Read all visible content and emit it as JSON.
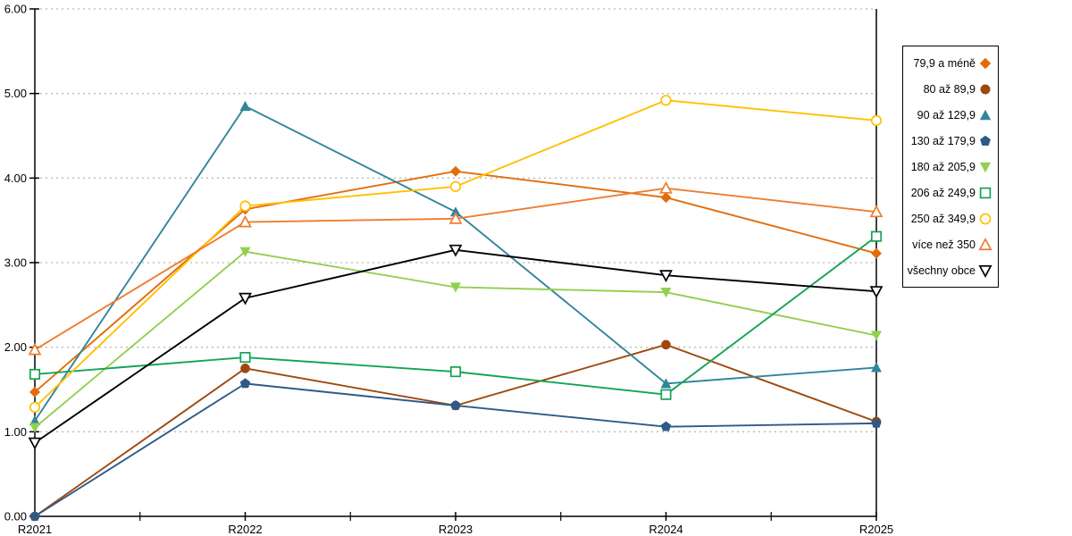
{
  "chart_data": {
    "type": "line",
    "title": "",
    "xlabel": "",
    "ylabel": "",
    "categories": [
      "R2021",
      "R2022",
      "R2023",
      "R2024",
      "R2025"
    ],
    "series": [
      {
        "name": "79,9 a méně",
        "color": "#E36C0A",
        "marker": "diamond",
        "marker_style": "filled",
        "values": [
          1.47,
          3.63,
          4.08,
          3.77,
          3.11
        ]
      },
      {
        "name": "80 až 89,9",
        "color": "#9E480E",
        "marker": "circle",
        "marker_style": "filled",
        "values": [
          0.0,
          1.75,
          1.31,
          2.03,
          1.12
        ]
      },
      {
        "name": "90 až 129,9",
        "color": "#31859C",
        "marker": "triangle-up",
        "marker_style": "filled",
        "values": [
          1.13,
          4.85,
          3.6,
          1.57,
          1.76
        ]
      },
      {
        "name": "130 až 179,9",
        "color": "#2E5A88",
        "marker": "pentagon",
        "marker_style": "filled",
        "values": [
          0.0,
          1.57,
          1.31,
          1.06,
          1.1
        ]
      },
      {
        "name": "180 až 205,9",
        "color": "#92D050",
        "marker": "triangle-down",
        "marker_style": "filled",
        "values": [
          1.05,
          3.13,
          2.71,
          2.65,
          2.14
        ]
      },
      {
        "name": "206 až 249,9",
        "color": "#12A455",
        "marker": "square",
        "marker_style": "open",
        "values": [
          1.68,
          1.88,
          1.71,
          1.44,
          3.31
        ]
      },
      {
        "name": "250 až 349,9",
        "color": "#FFC000",
        "marker": "circle",
        "marker_style": "open",
        "values": [
          1.29,
          3.67,
          3.9,
          4.92,
          4.68
        ]
      },
      {
        "name": "více než 350",
        "color": "#ED7D31",
        "marker": "triangle-up",
        "marker_style": "open",
        "values": [
          1.97,
          3.48,
          3.52,
          3.88,
          3.6
        ]
      },
      {
        "name": "všechny obce",
        "color": "#000000",
        "marker": "triangle-down",
        "marker_style": "open",
        "values": [
          0.87,
          2.58,
          3.15,
          2.85,
          2.66
        ]
      }
    ],
    "ylim": [
      0,
      6
    ],
    "ytick_step": 1,
    "ytick_labels": [
      "0.00",
      "1.00",
      "2.00",
      "3.00",
      "4.00",
      "5.00",
      "6.00"
    ],
    "grid": "horizontal-dotted",
    "grid_color": "#b8b8b8",
    "axis_color": "#000000",
    "legend_position": "right",
    "has_right_border": true,
    "minor_xticks_between_categories": true
  }
}
